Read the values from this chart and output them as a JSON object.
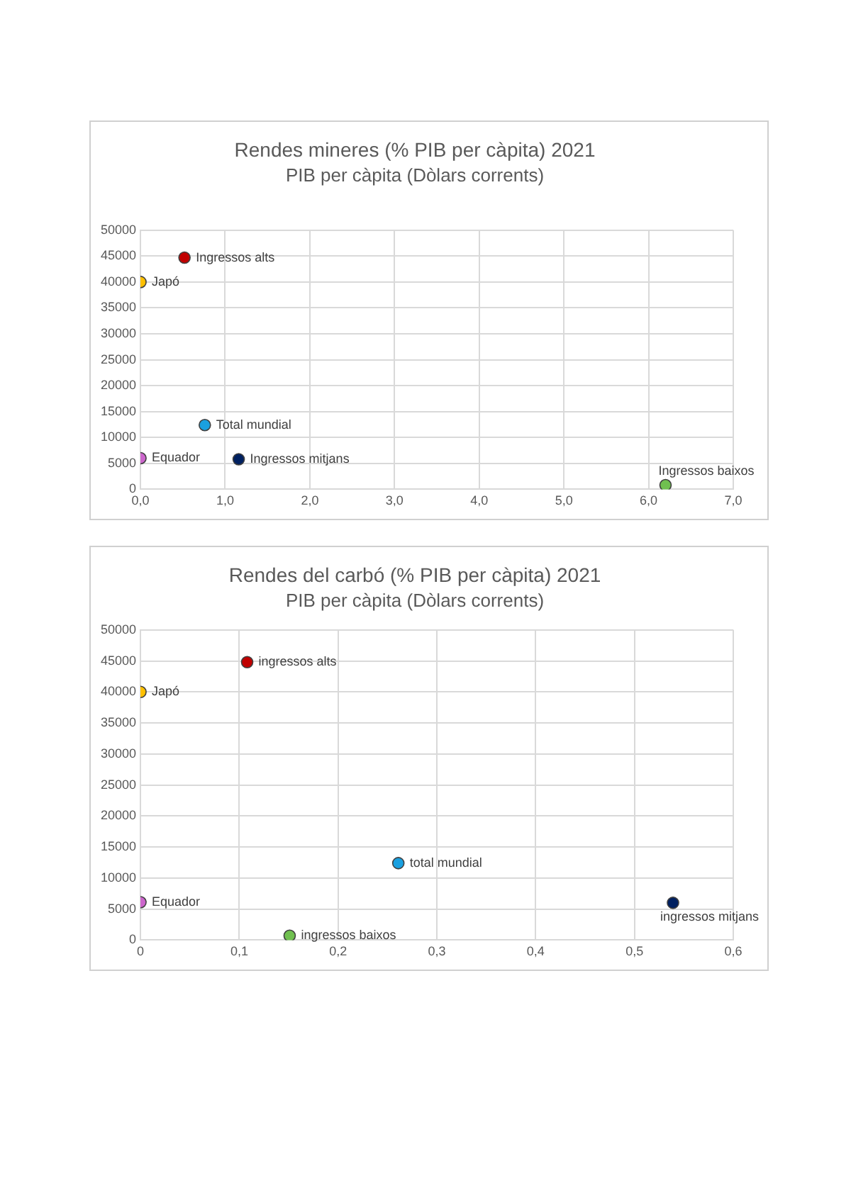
{
  "chart_data": [
    {
      "type": "scatter",
      "title": "Rendes mineres (% PIB per càpita) 2021",
      "subtitle": "PIB per càpita (Dòlars corrents)",
      "grid": true,
      "legend": false,
      "marker": "circle",
      "xlim": [
        0,
        7
      ],
      "xticks": [
        {
          "value": 0,
          "label": "0,0"
        },
        {
          "value": 1,
          "label": "1,0"
        },
        {
          "value": 2,
          "label": "2,0"
        },
        {
          "value": 3,
          "label": "3,0"
        },
        {
          "value": 4,
          "label": "4,0"
        },
        {
          "value": 5,
          "label": "5,0"
        },
        {
          "value": 6,
          "label": "6,0"
        },
        {
          "value": 7,
          "label": "7,0"
        }
      ],
      "ylim": [
        0,
        50000
      ],
      "yticks": [
        0,
        5000,
        10000,
        15000,
        20000,
        25000,
        30000,
        35000,
        40000,
        45000,
        50000
      ],
      "series": [
        {
          "name": "Ingressos alts",
          "color": "#c00000",
          "x": [
            0.52
          ],
          "values": [
            44700
          ]
        },
        {
          "name": "Japó",
          "color": "#ffc000",
          "x": [
            0.0
          ],
          "values": [
            40000
          ]
        },
        {
          "name": "Total mundial",
          "color": "#1aa0e0",
          "x": [
            0.76
          ],
          "values": [
            12400
          ]
        },
        {
          "name": "Equador",
          "color": "#cc66cc",
          "x": [
            0.0
          ],
          "values": [
            6000
          ]
        },
        {
          "name": "Ingressos mitjans",
          "color": "#002060",
          "x": [
            1.16
          ],
          "values": [
            5800
          ]
        },
        {
          "name": "Ingressos baixos",
          "color": "#70c050",
          "x": [
            6.2
          ],
          "values": [
            800
          ]
        }
      ]
    },
    {
      "type": "scatter",
      "title": "Rendes del carbó (% PIB per càpita) 2021",
      "subtitle": "PIB per càpita (Dòlars corrents)",
      "grid": true,
      "legend": false,
      "marker": "circle",
      "xlim": [
        0,
        0.6
      ],
      "xticks": [
        {
          "value": 0,
          "label": "0"
        },
        {
          "value": 0.1,
          "label": "0,1"
        },
        {
          "value": 0.2,
          "label": "0,2"
        },
        {
          "value": 0.3,
          "label": "0,3"
        },
        {
          "value": 0.4,
          "label": "0,4"
        },
        {
          "value": 0.5,
          "label": "0,5"
        },
        {
          "value": 0.6,
          "label": "0,6"
        }
      ],
      "ylim": [
        0,
        50000
      ],
      "yticks": [
        0,
        5000,
        10000,
        15000,
        20000,
        25000,
        30000,
        35000,
        40000,
        45000,
        50000
      ],
      "series": [
        {
          "name": "ingressos alts",
          "color": "#c00000",
          "x": [
            0.108
          ],
          "values": [
            44800
          ]
        },
        {
          "name": "Japó",
          "color": "#ffc000",
          "x": [
            0
          ],
          "values": [
            40000
          ]
        },
        {
          "name": "total mundial",
          "color": "#1aa0e0",
          "x": [
            0.261
          ],
          "values": [
            12400
          ]
        },
        {
          "name": "Equador",
          "color": "#cc66cc",
          "x": [
            0
          ],
          "values": [
            6100
          ]
        },
        {
          "name": "ingressos mitjans",
          "color": "#002060",
          "x": [
            0.539
          ],
          "values": [
            6000
          ]
        },
        {
          "name": "ingressos baixos",
          "color": "#70c050",
          "x": [
            0.151
          ],
          "values": [
            700
          ]
        }
      ]
    }
  ]
}
